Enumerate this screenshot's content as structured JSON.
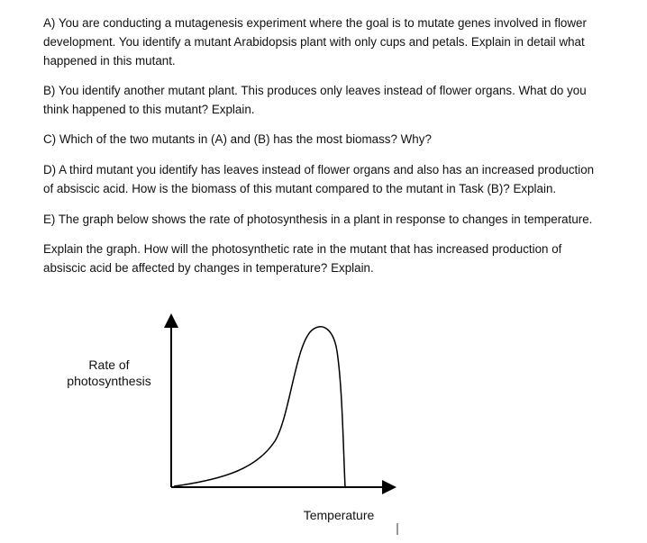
{
  "paragraphs": [
    [
      "A) You are conducting a mutagenesis experiment where the goal is to mutate genes involved in flower",
      "development. You identify a mutant Arabidopsis plant with only cups and petals. Explain in detail what",
      "happened in this mutant."
    ],
    [
      "B) You identify another mutant plant. This produces only leaves instead of flower organs. What do you",
      "think happened to this mutant? Explain."
    ],
    [
      "C) Which of the two mutants in (A) and (B) has the most biomass? Why?"
    ],
    [
      "D) A third mutant you identify has leaves instead of flower organs and also has an increased production",
      "of absiscic acid.  How is the biomass of this mutant compared to the mutant in Task (B)? Explain."
    ],
    [
      "E) The graph below shows the rate of photosynthesis in a plant in response to changes in temperature."
    ],
    [
      "Explain the graph. How will the photosynthetic rate in the mutant that has increased production of",
      "absiscic acid be affected by changes in temperature? Explain."
    ]
  ],
  "graph": {
    "y_label": [
      "Rate of",
      "photosynthesis"
    ],
    "x_label": "Temperature"
  }
}
